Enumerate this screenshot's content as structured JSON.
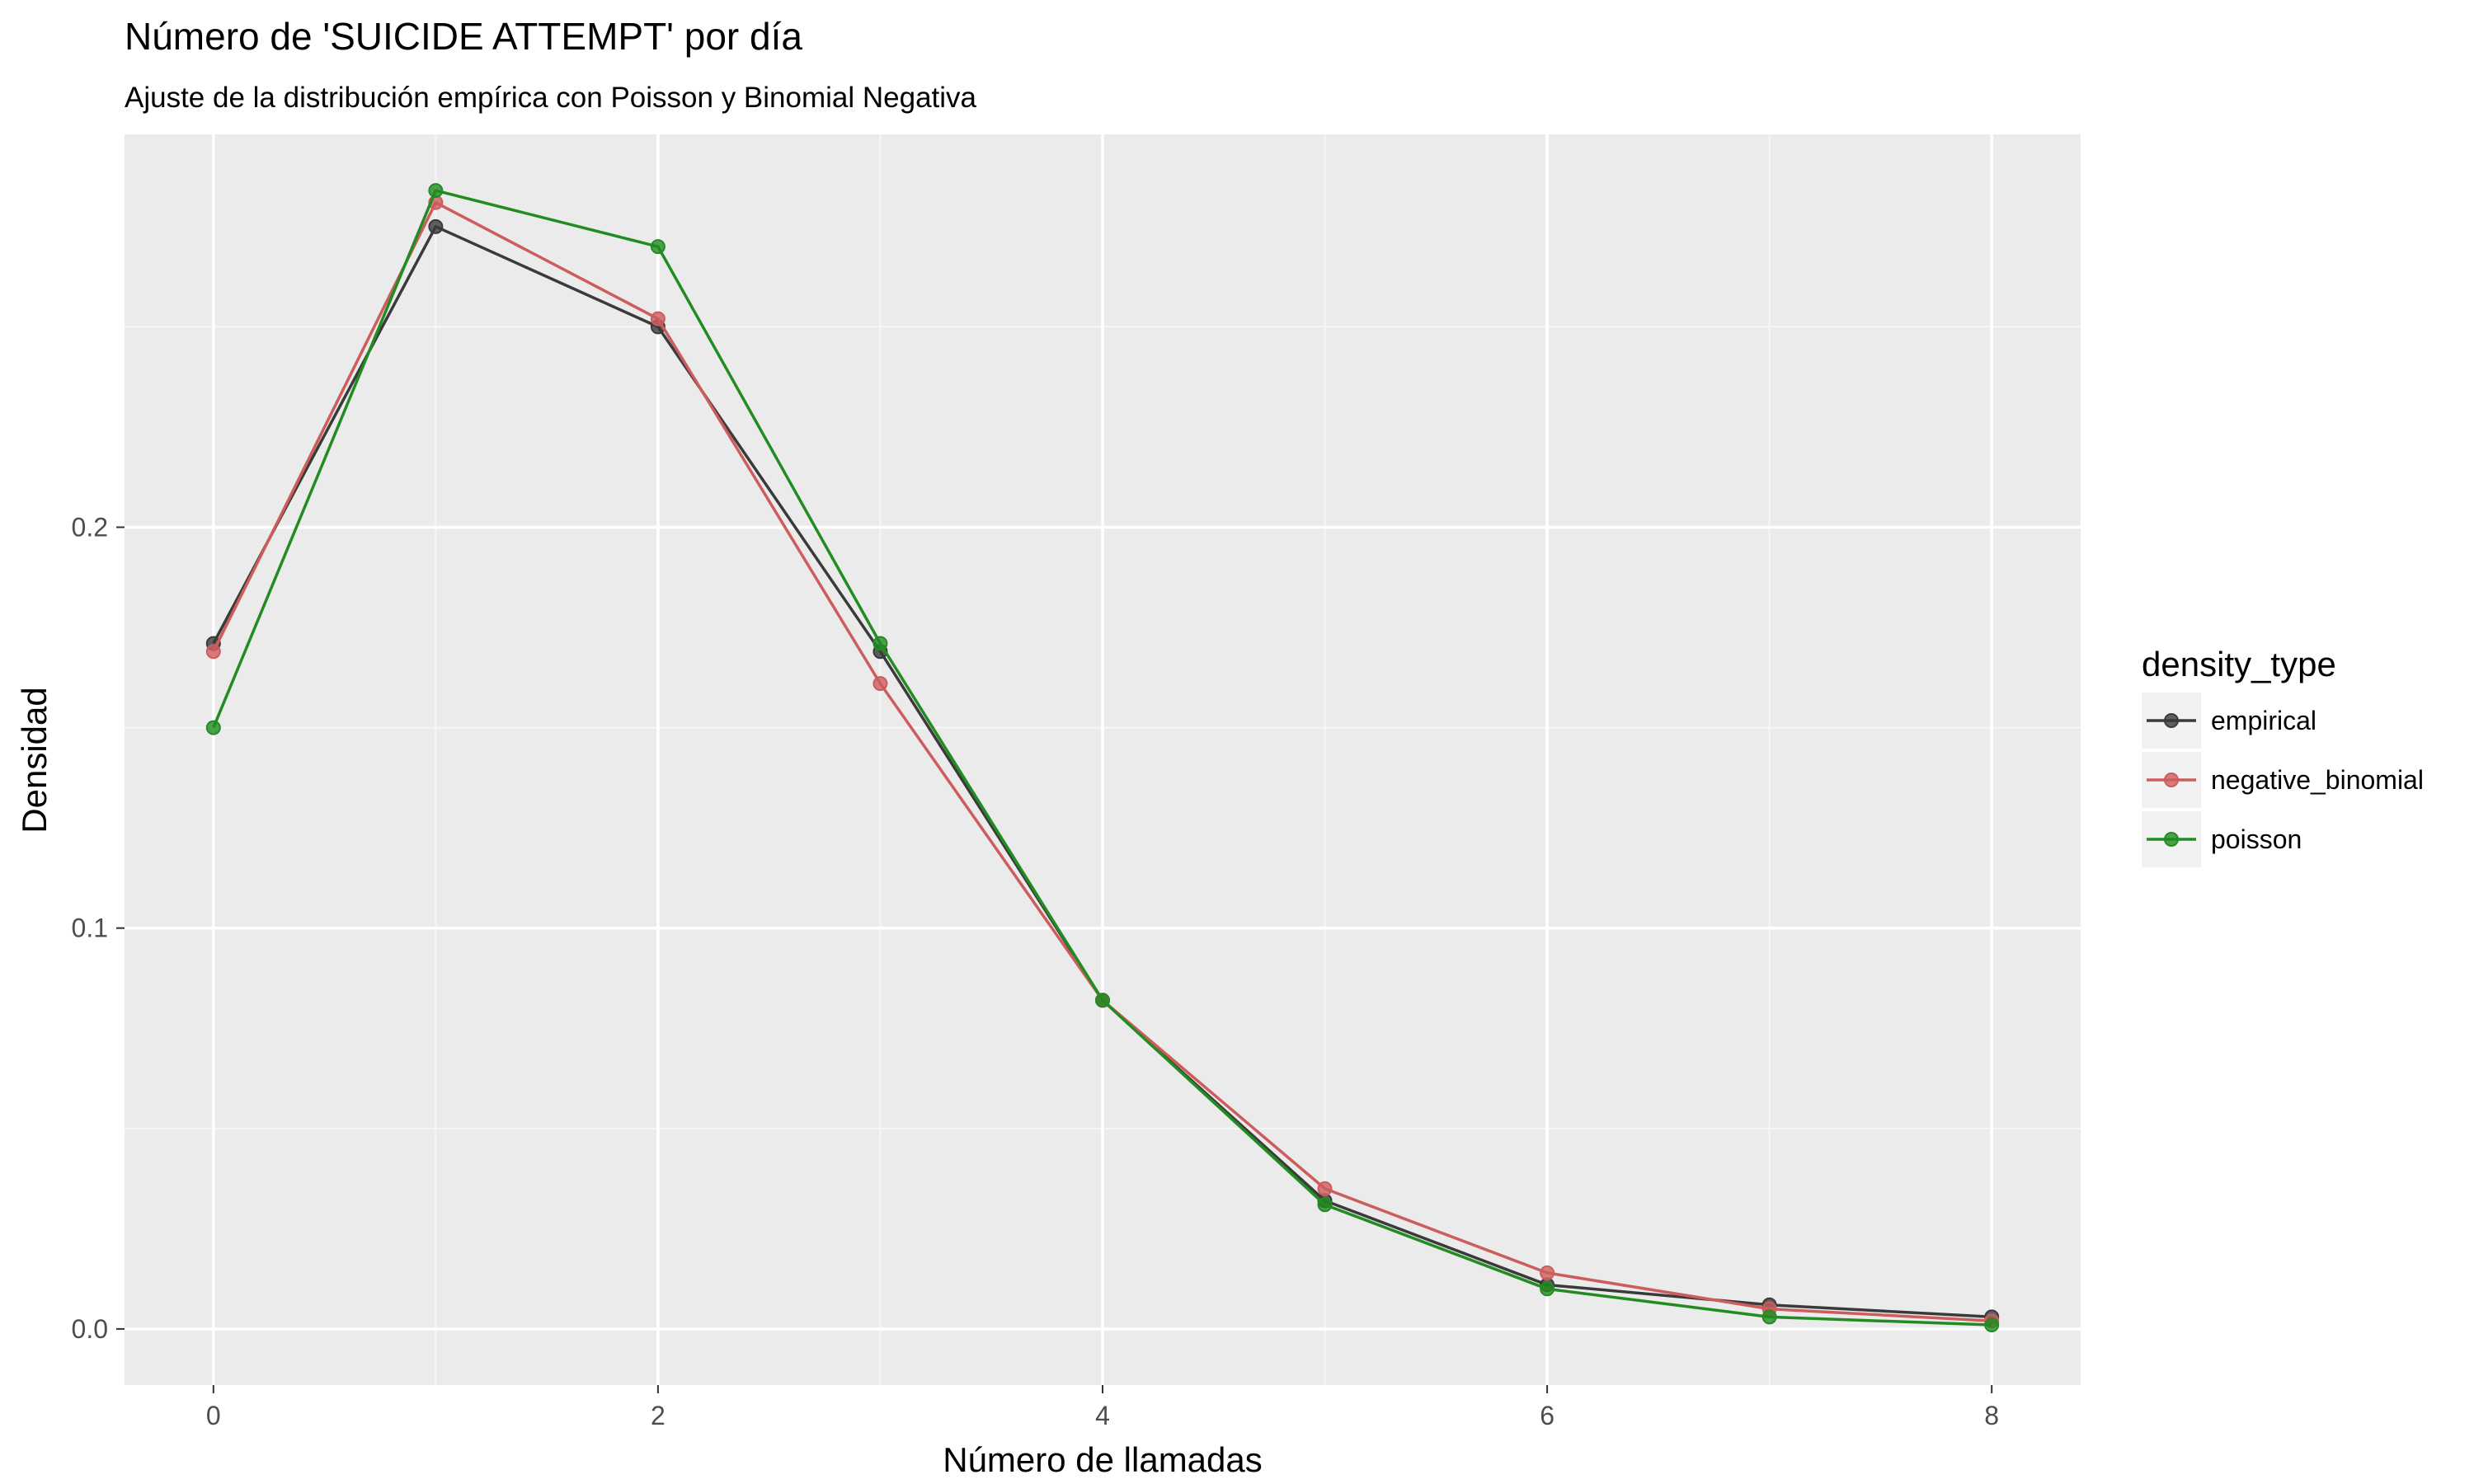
{
  "chart_data": {
    "type": "line",
    "title": "Número de 'SUICIDE ATTEMPT' por día",
    "subtitle": "Ajuste de la distribución empírica con Poisson y Binomial Negativa",
    "xlabel": "Número de llamadas",
    "ylabel": "Densidad",
    "x": [
      0,
      1,
      2,
      3,
      4,
      5,
      6,
      7,
      8
    ],
    "xlim": [
      -0.4,
      8.4
    ],
    "ylim": [
      -0.014,
      0.298
    ],
    "xticks": [
      0,
      2,
      4,
      6,
      8
    ],
    "xtick_labels": [
      "0",
      "2",
      "4",
      "6",
      "8"
    ],
    "yticks": [
      0.0,
      0.1,
      0.2
    ],
    "ytick_labels": [
      "0.0",
      "0.1",
      "0.2"
    ],
    "grid": true,
    "legend": {
      "title": "density_type",
      "position": "right"
    },
    "series": [
      {
        "name": "empirical",
        "color": "#3a3a3a",
        "values": [
          0.171,
          0.275,
          0.25,
          0.169,
          0.082,
          0.032,
          0.011,
          0.006,
          0.003
        ]
      },
      {
        "name": "negative_binomial",
        "color": "#cd5c5c",
        "values": [
          0.169,
          0.281,
          0.252,
          0.161,
          0.082,
          0.035,
          0.014,
          0.005,
          0.002
        ]
      },
      {
        "name": "poisson",
        "color": "#228b22",
        "values": [
          0.15,
          0.284,
          0.27,
          0.171,
          0.082,
          0.031,
          0.01,
          0.003,
          0.001
        ]
      }
    ]
  }
}
